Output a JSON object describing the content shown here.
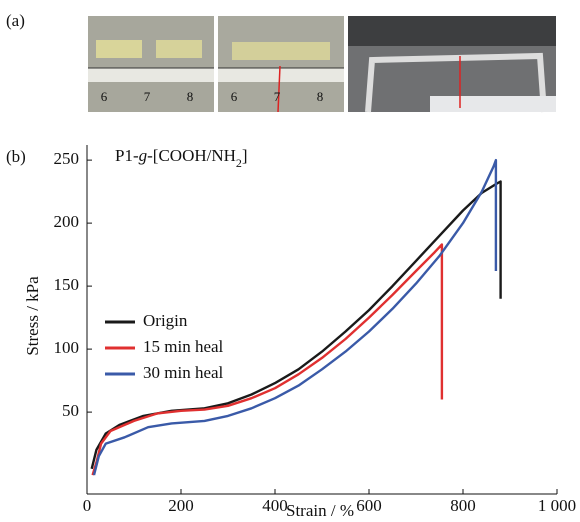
{
  "panel_labels": [
    "(a)",
    "(b)"
  ],
  "photos": [
    {
      "ruler_labels": [
        "6",
        "7",
        "8"
      ]
    },
    {
      "ruler_labels": [
        "6",
        "7",
        "8"
      ]
    }
  ],
  "chart_data": {
    "type": "line",
    "title_parts": [
      "P1-",
      "g",
      "-[COOH/NH",
      "2",
      "]"
    ],
    "x_label": "Strain / %",
    "y_label": "Stress / kPa",
    "xlim": [
      0,
      1000
    ],
    "ylim": [
      -15,
      262
    ],
    "xticks": [
      0,
      200,
      400,
      600,
      800,
      {
        "value": 1000,
        "label": "1 000"
      }
    ],
    "yticks": [
      50,
      100,
      150,
      200,
      250
    ],
    "legend": "left",
    "series": [
      {
        "name": "Origin",
        "color": "#1a1a1a",
        "x": [
          10,
          20,
          40,
          70,
          120,
          180,
          250,
          300,
          350,
          400,
          450,
          500,
          550,
          600,
          650,
          700,
          750,
          800,
          840,
          870,
          880,
          880
        ],
        "values": [
          5,
          20,
          33,
          40,
          47,
          51,
          53,
          57,
          64,
          73,
          84,
          98,
          114,
          131,
          150,
          170,
          190,
          210,
          224,
          231,
          233,
          140
        ]
      },
      {
        "name": "15 min heal",
        "color": "#e03030",
        "x": [
          12,
          20,
          30,
          50,
          100,
          150,
          200,
          250,
          300,
          350,
          400,
          450,
          500,
          550,
          600,
          650,
          700,
          740,
          755,
          755
        ],
        "values": [
          0,
          10,
          25,
          35,
          43,
          49,
          51,
          52,
          55,
          61,
          69,
          80,
          93,
          108,
          125,
          143,
          162,
          177,
          183,
          60
        ]
      },
      {
        "name": "30 min heal",
        "color": "#3a5aa8",
        "x": [
          15,
          25,
          40,
          80,
          130,
          180,
          250,
          300,
          350,
          400,
          450,
          500,
          550,
          600,
          650,
          700,
          750,
          800,
          840,
          865,
          870,
          870
        ],
        "values": [
          0,
          15,
          25,
          30,
          38,
          41,
          43,
          47,
          53,
          61,
          71,
          84,
          98,
          114,
          132,
          152,
          174,
          200,
          225,
          245,
          250,
          162
        ]
      }
    ]
  }
}
